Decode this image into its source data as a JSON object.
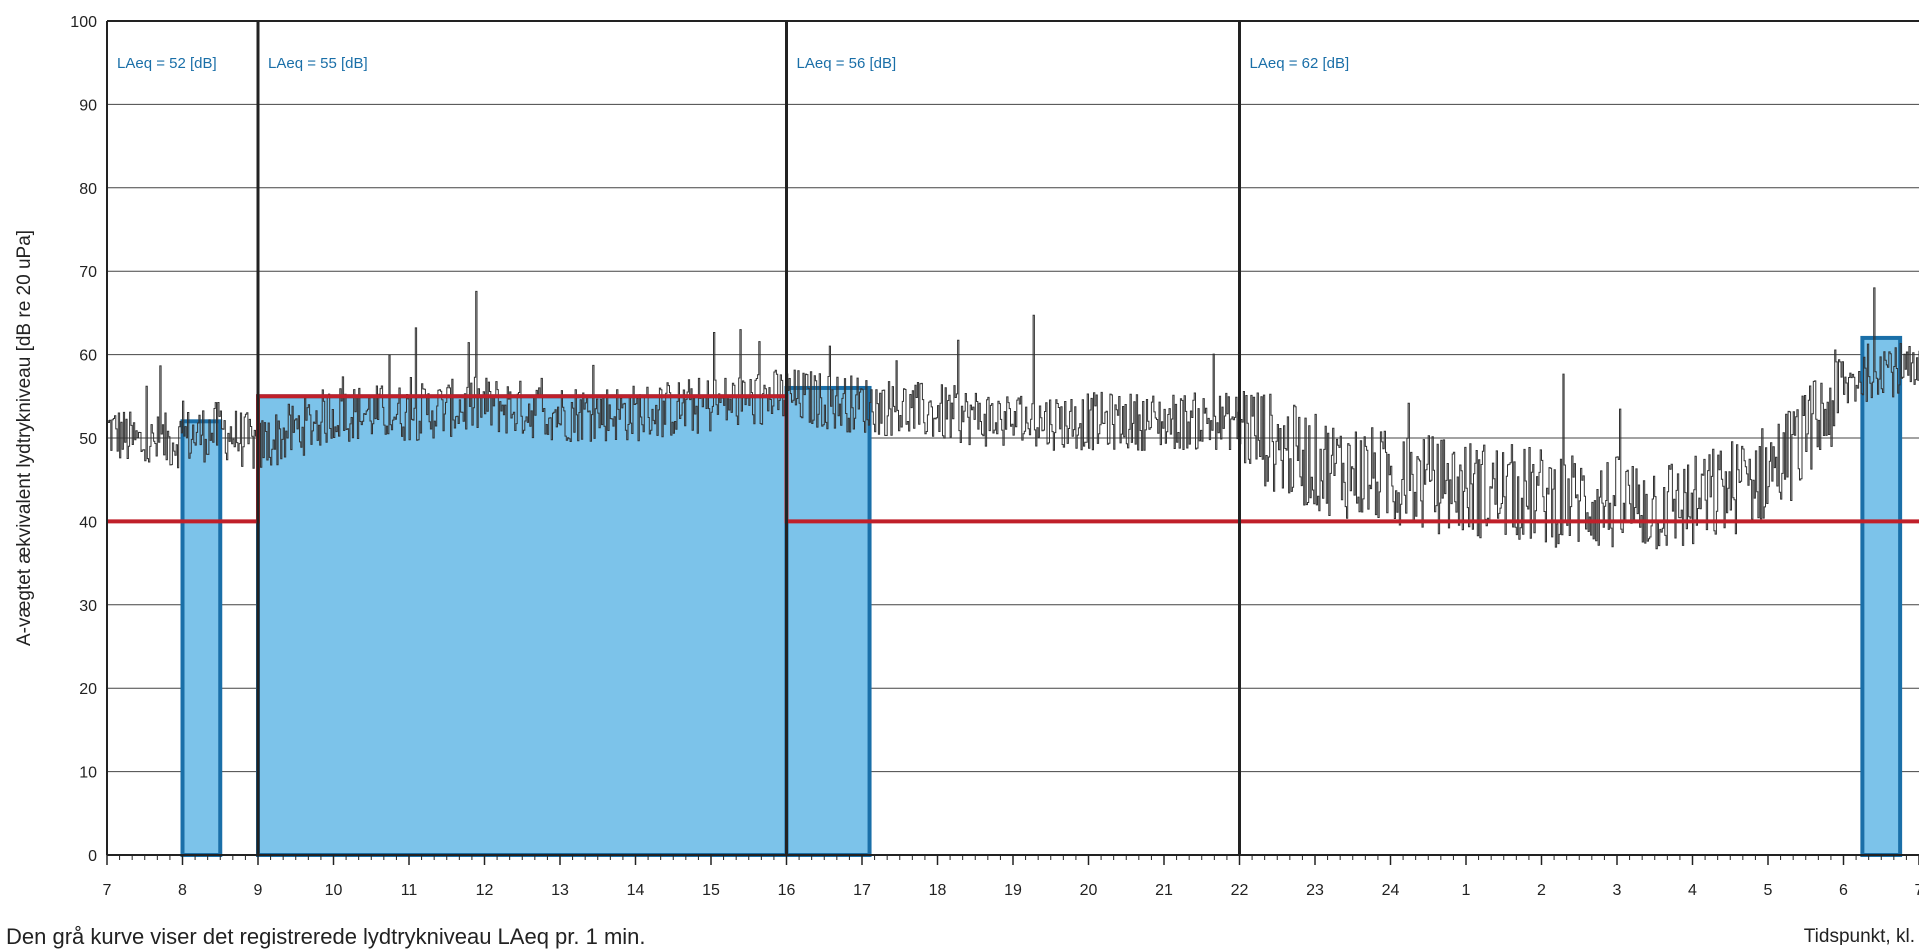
{
  "chart_data": {
    "type": "line",
    "title": "",
    "xlabel": "Tidspunkt, kl.",
    "ylabel": "A-vægtet ækvivalent lydtrykniveau [dB re 20 uPa]",
    "ylim": [
      0,
      100
    ],
    "yticks": [
      0,
      10,
      20,
      30,
      40,
      50,
      60,
      70,
      80,
      90,
      100
    ],
    "x_tick_labels": [
      "7",
      "8",
      "9",
      "10",
      "11",
      "12",
      "13",
      "14",
      "15",
      "16",
      "17",
      "18",
      "19",
      "20",
      "21",
      "22",
      "23",
      "24",
      "1",
      "2",
      "3",
      "4",
      "5",
      "6",
      "7"
    ],
    "grid": "horizontal",
    "period_boundaries": [
      9,
      16,
      22
    ],
    "period_labels": [
      "LAeq = 52 [dB]",
      "LAeq = 55 [dB]",
      "LAeq = 56 [dB]",
      "LAeq = 62 [dB]"
    ],
    "laeq_bars": [
      {
        "from": 8.0,
        "to": 8.5,
        "value": 52
      },
      {
        "from": 9.0,
        "to": 16.0,
        "value": 55
      },
      {
        "from": 16.0,
        "to": 17.1,
        "value": 56
      },
      {
        "from": 30.25,
        "to": 30.75,
        "value": 62
      }
    ],
    "limit_line": [
      {
        "from": 7,
        "to": 9,
        "value": 40
      },
      {
        "from": 9,
        "to": 16,
        "value": 55
      },
      {
        "from": 16,
        "to": 31,
        "value": 40
      }
    ],
    "series": [
      {
        "x": [
          7,
          7.5,
          8,
          8.5,
          9,
          10,
          11,
          12,
          13,
          14,
          15,
          16,
          17,
          18,
          19,
          20,
          21,
          22,
          22.5,
          23,
          23.5,
          24,
          25,
          26,
          27,
          28,
          28.5,
          29,
          29.5,
          30,
          30.5,
          31
        ],
        "y": [
          51,
          49,
          50,
          51,
          49,
          53,
          53,
          54,
          53,
          53,
          54,
          55,
          54,
          53,
          52,
          52,
          52,
          52,
          49,
          47,
          46,
          45,
          44,
          43,
          42,
          42,
          44,
          46,
          50,
          56,
          59,
          57
        ]
      }
    ],
    "colors": {
      "bar_fill": "#7cc3ea",
      "bar_edge": "#1a6fa8",
      "limit": "#c0202a",
      "trace": "#333333",
      "grid": "#444444"
    }
  },
  "caption": "Den grå kurve viser det registrerede lydtrykniveau LAeq pr. 1 min."
}
